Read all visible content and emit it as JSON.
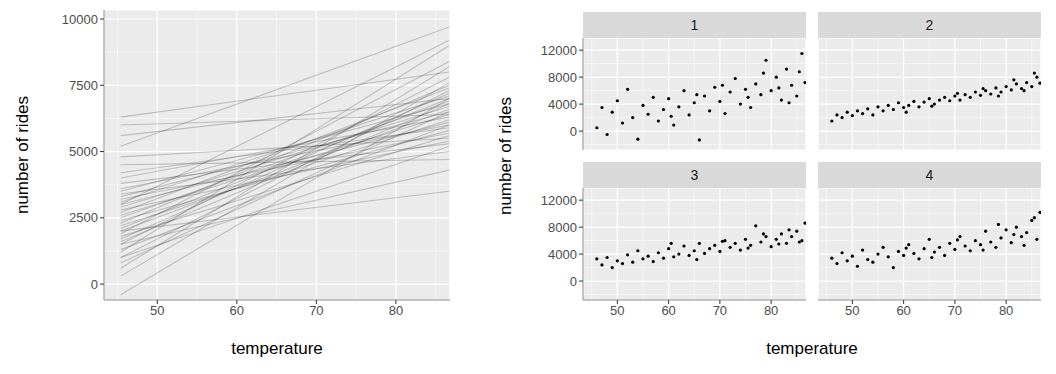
{
  "chart_data": [
    {
      "type": "line",
      "x_label": "temperature",
      "y_label": "number of rides",
      "color": "#000000",
      "grid": true,
      "x": [
        45.4,
        86.7
      ],
      "xlim": [
        43.3,
        86.8
      ],
      "xticks": [
        50,
        60,
        70,
        80
      ],
      "ylim": [
        -600,
        10340
      ],
      "yticks": [
        0,
        2500,
        5000,
        7500,
        10000
      ],
      "series": [
        {
          "values": [
            -400,
            7000
          ]
        },
        {
          "values": [
            300,
            7600
          ]
        },
        {
          "values": [
            600,
            8200
          ]
        },
        {
          "values": [
            800,
            6500
          ]
        },
        {
          "values": [
            1000,
            7300
          ]
        },
        {
          "values": [
            1200,
            9000
          ]
        },
        {
          "values": [
            1300,
            6000
          ]
        },
        {
          "values": [
            1500,
            7800
          ]
        },
        {
          "values": [
            1600,
            6800
          ]
        },
        {
          "values": [
            1700,
            7200
          ]
        },
        {
          "values": [
            1800,
            5600
          ]
        },
        {
          "values": [
            1900,
            8400
          ]
        },
        {
          "values": [
            2000,
            6600
          ]
        },
        {
          "values": [
            2100,
            7000
          ]
        },
        {
          "values": [
            2200,
            6200
          ]
        },
        {
          "values": [
            2300,
            7500
          ]
        },
        {
          "values": [
            2400,
            5800
          ]
        },
        {
          "values": [
            2500,
            6900
          ]
        },
        {
          "values": [
            2600,
            6400
          ]
        },
        {
          "values": [
            2700,
            7400
          ]
        },
        {
          "values": [
            2800,
            5400
          ]
        },
        {
          "values": [
            2900,
            6700
          ]
        },
        {
          "values": [
            3000,
            6100
          ]
        },
        {
          "values": [
            3100,
            7100
          ]
        },
        {
          "values": [
            3200,
            5700
          ]
        },
        {
          "values": [
            3300,
            6500
          ]
        },
        {
          "values": [
            3400,
            5000
          ]
        },
        {
          "values": [
            3500,
            6800
          ]
        },
        {
          "values": [
            3600,
            6000
          ]
        },
        {
          "values": [
            3800,
            5300
          ]
        },
        {
          "values": [
            4000,
            6300
          ]
        },
        {
          "values": [
            4200,
            5900
          ]
        },
        {
          "values": [
            4500,
            4700
          ]
        },
        {
          "values": [
            4800,
            5500
          ]
        },
        {
          "values": [
            5200,
            9700
          ]
        },
        {
          "values": [
            5600,
            7000
          ]
        },
        {
          "values": [
            6000,
            6400
          ]
        },
        {
          "values": [
            6300,
            8000
          ]
        },
        {
          "values": [
            2000,
            3500
          ]
        },
        {
          "values": [
            1500,
            4300
          ]
        },
        {
          "values": [
            3000,
            9200
          ]
        },
        {
          "values": [
            1000,
            5200
          ]
        }
      ]
    },
    {
      "type": "scatter",
      "x_label": "temperature",
      "y_label": "number of rides",
      "color": "#000000",
      "grid": true,
      "xlim": [
        43.3,
        86.8
      ],
      "xticks": [
        50,
        60,
        70,
        80
      ],
      "ylim": [
        -2800,
        13800
      ],
      "yticks": [
        0,
        4000,
        8000,
        12000
      ],
      "facets": [
        {
          "title": "1",
          "x": [
            46,
            47,
            48,
            49,
            50,
            51,
            52,
            53,
            54,
            55,
            56,
            57,
            58,
            59,
            60,
            61,
            62,
            63,
            64,
            65,
            66,
            67,
            68,
            69,
            70,
            71,
            72,
            73,
            74,
            75,
            76,
            77,
            78,
            79,
            80,
            81,
            82,
            83,
            84,
            85,
            86,
            86.6,
            60.5,
            65.5,
            70.5,
            75.5,
            78.5,
            81.5,
            83.5,
            85.5
          ],
          "y": [
            500,
            3500,
            -500,
            2800,
            4500,
            1200,
            6200,
            2000,
            -1200,
            3800,
            2500,
            5000,
            1500,
            3200,
            4800,
            900,
            3600,
            6000,
            2400,
            4200,
            -1300,
            5200,
            3000,
            6500,
            4400,
            2600,
            5800,
            7800,
            4000,
            6200,
            3500,
            7000,
            5400,
            10500,
            6000,
            8000,
            4600,
            9200,
            6800,
            5200,
            11500,
            7200,
            2200,
            5400,
            6800,
            5000,
            8600,
            6400,
            4200,
            8800
          ]
        },
        {
          "title": "2",
          "x": [
            46,
            47,
            48,
            49,
            50,
            51,
            52,
            53,
            54,
            55,
            56,
            57,
            58,
            59,
            60,
            61,
            62,
            63,
            64,
            65,
            66,
            67,
            68,
            69,
            70,
            71,
            72,
            73,
            74,
            75,
            76,
            77,
            78,
            79,
            80,
            81,
            82,
            83,
            84,
            85,
            86,
            86.6,
            60.5,
            65.5,
            70.5,
            75.5,
            78.5,
            81.5,
            83.5,
            85.5
          ],
          "y": [
            1500,
            2400,
            2000,
            2800,
            2300,
            3000,
            2600,
            3300,
            2400,
            3600,
            3000,
            3800,
            3200,
            4200,
            3500,
            3800,
            4400,
            3600,
            4300,
            4800,
            4000,
            4600,
            5000,
            4500,
            5200,
            4600,
            5400,
            5000,
            5800,
            5300,
            6000,
            5500,
            6400,
            5800,
            6600,
            6100,
            7000,
            6300,
            7200,
            6600,
            8000,
            7100,
            2800,
            3700,
            5600,
            6300,
            5200,
            7600,
            6000,
            8600
          ]
        },
        {
          "title": "3",
          "x": [
            46,
            47,
            48,
            49,
            50,
            51,
            52,
            53,
            54,
            55,
            56,
            57,
            58,
            59,
            60,
            61,
            62,
            63,
            64,
            65,
            66,
            67,
            68,
            69,
            70,
            71,
            72,
            73,
            74,
            75,
            76,
            77,
            78,
            79,
            80,
            81,
            82,
            83,
            84,
            85,
            86,
            86.6,
            60.5,
            65.5,
            70.5,
            75.5,
            78.5,
            81.5,
            83.5,
            85.5
          ],
          "y": [
            3300,
            2400,
            3500,
            2000,
            3000,
            2600,
            3900,
            2800,
            4500,
            3300,
            3700,
            2900,
            4200,
            3400,
            4800,
            3600,
            4000,
            5200,
            3800,
            4500,
            5600,
            4100,
            4800,
            5300,
            4400,
            6000,
            5000,
            5600,
            4600,
            6200,
            5300,
            8200,
            5800,
            6600,
            5100,
            6200,
            7000,
            5600,
            6600,
            7400,
            6000,
            8600,
            5600,
            3200,
            5900,
            4900,
            7000,
            5500,
            7600,
            5800
          ]
        },
        {
          "title": "4",
          "x": [
            46,
            47,
            48,
            49,
            50,
            51,
            52,
            53,
            54,
            55,
            56,
            57,
            58,
            59,
            60,
            61,
            62,
            63,
            64,
            65,
            66,
            67,
            68,
            69,
            70,
            71,
            72,
            73,
            74,
            75,
            76,
            77,
            78,
            79,
            80,
            81,
            82,
            83,
            84,
            85,
            86,
            86.6,
            60.5,
            65.5,
            70.5,
            75.5,
            78.5,
            81.5,
            83.5,
            85.5
          ],
          "y": [
            3400,
            2600,
            4200,
            3000,
            3700,
            2200,
            4600,
            3200,
            2800,
            4000,
            5000,
            3600,
            2000,
            4400,
            3800,
            5400,
            4100,
            3300,
            4800,
            6200,
            4300,
            5000,
            3800,
            5600,
            4700,
            6600,
            5200,
            4500,
            6000,
            5400,
            7400,
            5800,
            5000,
            6400,
            7600,
            5700,
            8000,
            6600,
            7200,
            9000,
            6200,
            10200,
            4900,
            3500,
            6100,
            4600,
            8400,
            6900,
            5300,
            9400
          ]
        }
      ]
    }
  ]
}
